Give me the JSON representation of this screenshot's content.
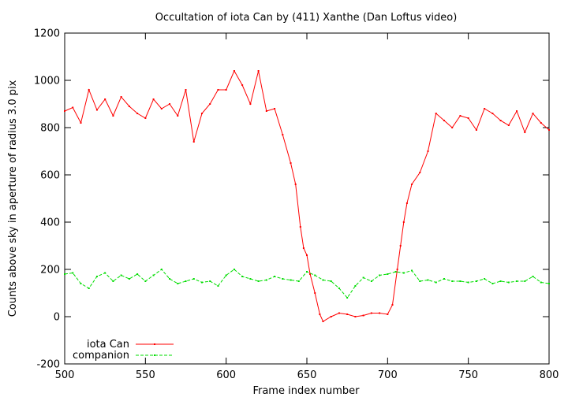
{
  "chart_data": {
    "type": "line",
    "title": "Occultation of iota Can by (411) Xanthe (Dan Loftus video)",
    "xlabel": "Frame index number",
    "ylabel": "Counts above sky in aperture of radius 3.0 pix",
    "xlim": [
      500,
      800
    ],
    "ylim": [
      -200,
      1200
    ],
    "xticks": [
      "500",
      "550",
      "600",
      "650",
      "700",
      "750",
      "800"
    ],
    "yticks": [
      "-200",
      "0",
      "200",
      "400",
      "600",
      "800",
      "1000",
      "1200"
    ],
    "grid": false,
    "legend_position": "bottom-left",
    "series": [
      {
        "name": "iota Can",
        "color": "#ff0000",
        "style": "solid-with-points",
        "x": [
          500,
          505,
          510,
          515,
          520,
          525,
          530,
          535,
          540,
          545,
          550,
          555,
          560,
          565,
          570,
          575,
          580,
          585,
          590,
          595,
          600,
          605,
          610,
          615,
          620,
          625,
          630,
          635,
          640,
          643,
          646,
          648,
          650,
          652,
          655,
          658,
          660,
          665,
          670,
          675,
          680,
          685,
          690,
          695,
          700,
          703,
          706,
          708,
          710,
          712,
          715,
          720,
          725,
          730,
          735,
          740,
          745,
          750,
          755,
          760,
          765,
          770,
          775,
          780,
          785,
          790,
          795,
          800
        ],
        "y": [
          870,
          885,
          820,
          960,
          875,
          920,
          850,
          930,
          890,
          860,
          840,
          920,
          880,
          900,
          850,
          960,
          740,
          860,
          900,
          960,
          960,
          1040,
          980,
          900,
          1040,
          870,
          880,
          770,
          650,
          560,
          380,
          290,
          260,
          180,
          100,
          10,
          -20,
          0,
          15,
          10,
          0,
          5,
          15,
          15,
          10,
          50,
          200,
          300,
          400,
          480,
          560,
          610,
          700,
          860,
          830,
          800,
          850,
          840,
          790,
          880,
          860,
          830,
          810,
          870,
          780,
          860,
          820,
          790
        ]
      },
      {
        "name": "companion",
        "color": "#00dd00",
        "style": "dashed-with-points",
        "x": [
          500,
          505,
          510,
          515,
          520,
          525,
          530,
          535,
          540,
          545,
          550,
          555,
          560,
          565,
          570,
          575,
          580,
          585,
          590,
          595,
          600,
          605,
          610,
          615,
          620,
          625,
          630,
          635,
          640,
          645,
          650,
          655,
          660,
          665,
          670,
          675,
          680,
          685,
          690,
          695,
          700,
          705,
          710,
          715,
          720,
          725,
          730,
          735,
          740,
          745,
          750,
          755,
          760,
          765,
          770,
          775,
          780,
          785,
          790,
          795,
          800
        ],
        "y": [
          180,
          185,
          140,
          120,
          170,
          185,
          150,
          175,
          160,
          180,
          150,
          175,
          200,
          160,
          140,
          150,
          160,
          145,
          150,
          130,
          175,
          200,
          170,
          160,
          150,
          155,
          170,
          160,
          155,
          150,
          190,
          175,
          155,
          150,
          120,
          80,
          130,
          165,
          150,
          175,
          180,
          190,
          185,
          195,
          150,
          155,
          145,
          160,
          150,
          150,
          145,
          150,
          160,
          140,
          150,
          145,
          150,
          150,
          170,
          145,
          140
        ]
      }
    ]
  }
}
